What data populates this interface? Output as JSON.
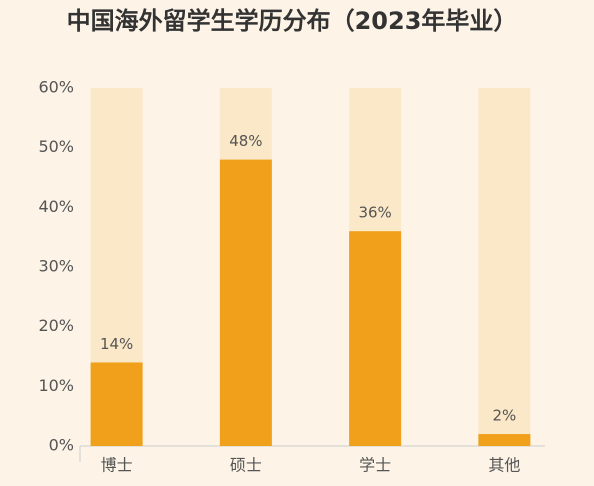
{
  "chart_data": {
    "type": "bar",
    "title": "中国海外留学生学历分布（2023年毕业）",
    "categories": [
      "博士",
      "硕士",
      "学士",
      "其他"
    ],
    "values": [
      14,
      48,
      36,
      2
    ],
    "value_labels": [
      "14%",
      "48%",
      "36%",
      "2%"
    ],
    "color": "#f0a01a",
    "track_color": "#fbe8c8",
    "ylim": [
      0,
      60
    ],
    "yticks": [
      {
        "value": 0,
        "label": "0%"
      },
      {
        "value": 10,
        "label": "10%"
      },
      {
        "value": 20,
        "label": "20%"
      },
      {
        "value": 30,
        "label": "30%"
      },
      {
        "value": 40,
        "label": "40%"
      },
      {
        "value": 50,
        "label": "50%"
      },
      {
        "value": 60,
        "label": "60%"
      }
    ]
  }
}
